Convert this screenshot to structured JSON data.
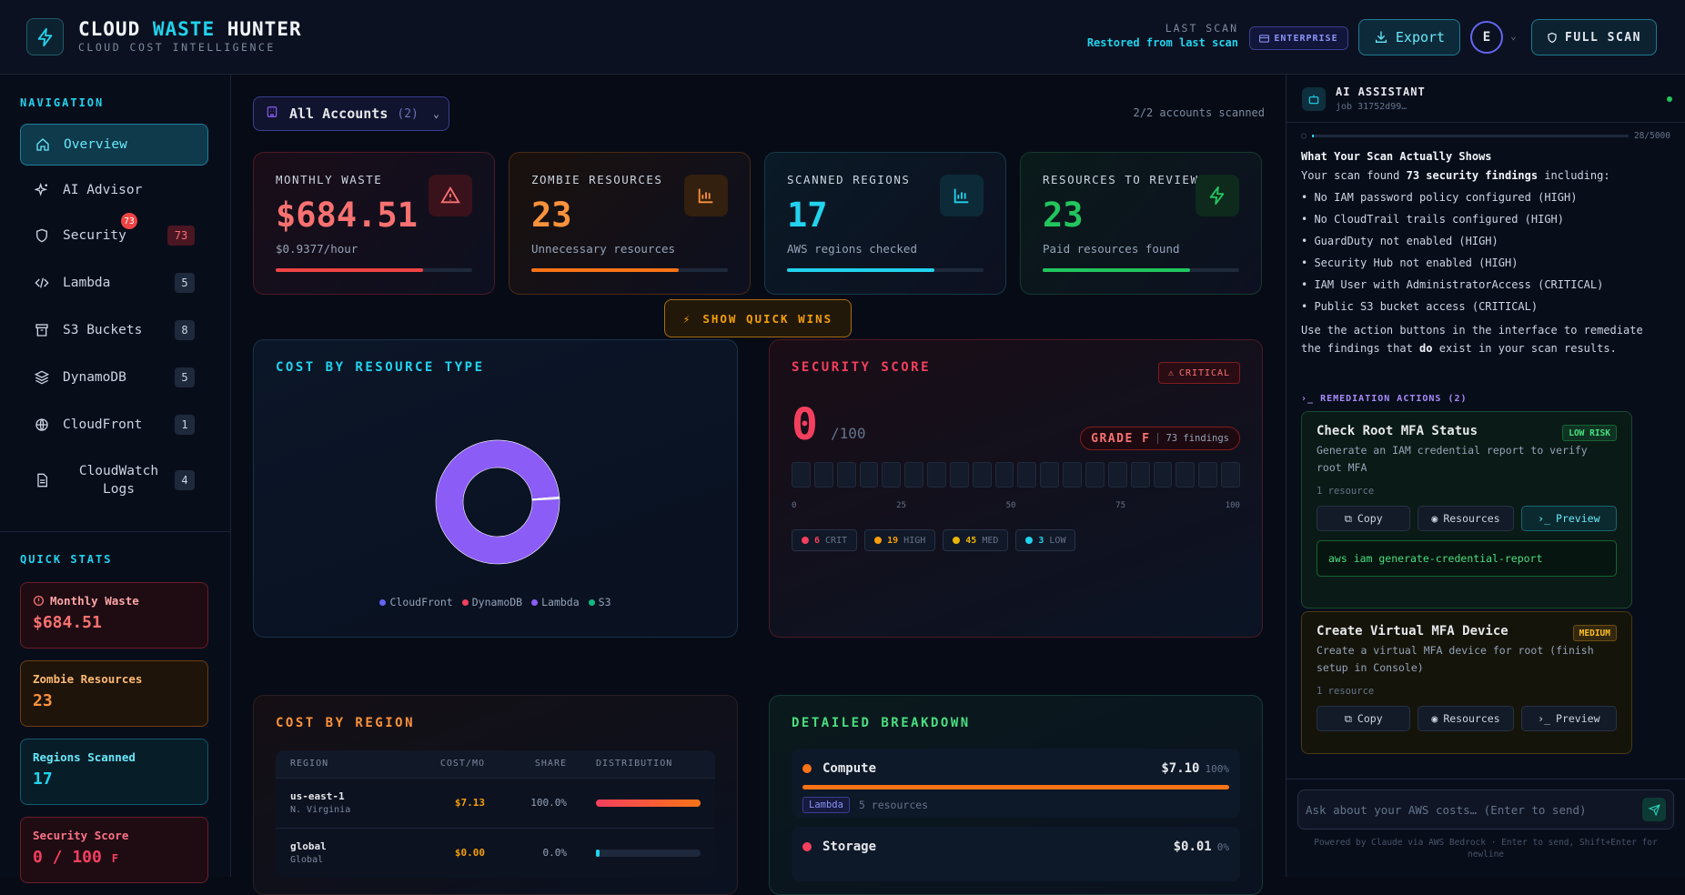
{
  "header": {
    "title_a": "CLOUD",
    "title_b": "WASTE",
    "title_c": "HUNTER",
    "subtitle": "CLOUD COST INTELLIGENCE",
    "last_scan_label": "LAST SCAN",
    "last_scan_value": "Restored from last scan",
    "enterprise": "ENTERPRISE",
    "export": "Export",
    "avatar": "E",
    "full_scan": "FULL SCAN"
  },
  "sidebar": {
    "nav_heading": "NAVIGATION",
    "items": [
      {
        "label": "Overview",
        "icon": "home-icon",
        "count": ""
      },
      {
        "label": "AI Advisor",
        "icon": "sparkles-icon",
        "count": ""
      },
      {
        "label": "Security",
        "icon": "shield-icon",
        "count": "73",
        "badge": "73"
      },
      {
        "label": "Lambda",
        "icon": "code-icon",
        "count": "5"
      },
      {
        "label": "S3 Buckets",
        "icon": "archive-icon",
        "count": "8"
      },
      {
        "label": "DynamoDB",
        "icon": "layers-icon",
        "count": "5"
      },
      {
        "label": "CloudFront",
        "icon": "globe-icon",
        "count": "1"
      },
      {
        "label": "CloudWatch\nLogs",
        "icon": "file-icon",
        "count": "4"
      }
    ],
    "quick_heading": "QUICK STATS",
    "quick": {
      "waste_label": "Monthly Waste",
      "waste_value": "$684.51",
      "zombie_label": "Zombie Resources",
      "zombie_value": "23",
      "regions_label": "Regions Scanned",
      "regions_value": "17",
      "security_label": "Security Score",
      "security_value": "0 / 100",
      "security_grade": "F"
    }
  },
  "main": {
    "account_label": "All Accounts",
    "account_count": "(2)",
    "scanned": "2/2 accounts scanned",
    "cards": [
      {
        "label": "MONTHLY WASTE",
        "value": "$684.51",
        "sub": "$0.9377/hour",
        "fill": 0.75,
        "color": "#ef4444"
      },
      {
        "label": "ZOMBIE RESOURCES",
        "value": "23",
        "sub": "Unnecessary resources",
        "fill": 0.75,
        "color": "#f97316"
      },
      {
        "label": "SCANNED REGIONS",
        "value": "17",
        "sub": "AWS regions checked",
        "fill": 0.75,
        "color": "#22d3ee"
      },
      {
        "label": "RESOURCES TO REVIEW",
        "value": "23",
        "sub": "Paid resources found",
        "fill": 0.75,
        "color": "#22c55e"
      }
    ],
    "quick_wins": "SHOW QUICK WINS",
    "cost_type": {
      "title": "COST BY RESOURCE TYPE",
      "legend": [
        "CloudFront",
        "DynamoDB",
        "Lambda",
        "S3"
      ]
    },
    "security": {
      "title": "SECURITY SCORE",
      "badge": "CRITICAL",
      "score": "0",
      "of": "/100",
      "grade": "GRADE F",
      "findings": "73 findings",
      "ticks": [
        "0",
        "25",
        "50",
        "75",
        "100"
      ],
      "sev": [
        {
          "n": "6",
          "l": "CRIT",
          "color": "#f43f5e"
        },
        {
          "n": "19",
          "l": "HIGH",
          "color": "#f59e0b"
        },
        {
          "n": "45",
          "l": "MED",
          "color": "#eab308"
        },
        {
          "n": "3",
          "l": "LOW",
          "color": "#22d3ee"
        }
      ]
    },
    "region": {
      "title": "COST BY REGION",
      "headers": [
        "REGION",
        "COST/MO",
        "SHARE",
        "DISTRIBUTION"
      ],
      "rows": [
        {
          "region": "us-east-1",
          "name": "N. Virginia",
          "cost": "$7.13",
          "share": "100.0%",
          "fill": 1.0
        },
        {
          "region": "global",
          "name": "Global",
          "cost": "$0.00",
          "share": "0.0%",
          "fill": 0.0
        }
      ]
    },
    "breakdown": {
      "title": "DETAILED BREAKDOWN",
      "rows": [
        {
          "name": "Compute",
          "amount": "$7.10",
          "pct": "100%",
          "tag": "Lambda",
          "res": "5 resources",
          "color": "#f97316"
        },
        {
          "name": "Storage",
          "amount": "$0.01",
          "pct": "0%",
          "color": "#f43f5e"
        }
      ]
    }
  },
  "chart_data": {
    "type": "pie",
    "title": "COST BY RESOURCE TYPE",
    "categories": [
      "CloudFront",
      "DynamoDB",
      "Lambda",
      "S3"
    ],
    "values": [
      0.01,
      0.01,
      7.1,
      0.01
    ],
    "colors": [
      "#6366f1",
      "#f43f5e",
      "#8b5cf6",
      "#10b981"
    ]
  },
  "assistant": {
    "title": "AI ASSISTANT",
    "job": "job 31752d99…",
    "tokens": "28/5000",
    "msg_heading": "What Your Scan Actually Shows",
    "msg_intro_a": "Your scan found ",
    "msg_intro_b": "73 security findings",
    "msg_intro_c": " including:",
    "bullets": [
      "No IAM password policy configured (HIGH)",
      "No CloudTrail trails configured (HIGH)",
      "GuardDuty not enabled (HIGH)",
      "Security Hub not enabled (HIGH)",
      "IAM User with AdministratorAccess (CRITICAL)",
      "Public S3 bucket access (CRITICAL)"
    ],
    "outro_a": "Use the action buttons in the interface to remediate the findings that ",
    "outro_b": "do",
    "outro_c": " exist in your scan results.",
    "rem_heading": "REMEDIATION ACTIONS (2)",
    "actions": [
      {
        "title": "Check Root MFA Status",
        "risk": "LOW RISK",
        "desc": "Generate an IAM credential report to verify root MFA",
        "res": "1 resource",
        "copy": "Copy",
        "resources": "Resources",
        "preview": "Preview",
        "cmd": "aws iam generate-credential-report"
      },
      {
        "title": "Create Virtual MFA Device",
        "risk": "MEDIUM",
        "desc": "Create a virtual MFA device for root (finish setup in Console)",
        "res": "1 resource",
        "copy": "Copy",
        "resources": "Resources",
        "preview": "Preview"
      }
    ],
    "input_placeholder": "Ask about your AWS costs… (Enter to send)",
    "footer": "Powered by Claude via AWS Bedrock · Enter to send, Shift+Enter for newline"
  }
}
